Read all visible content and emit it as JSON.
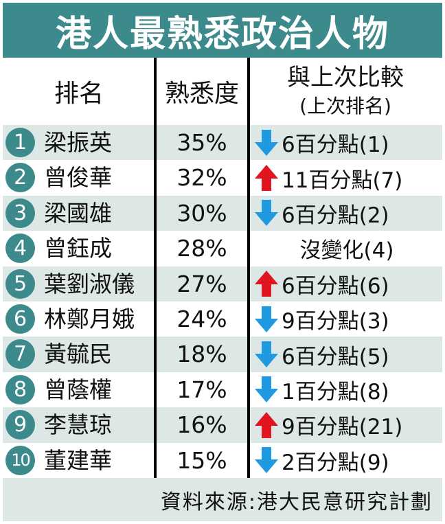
{
  "title": "港人最熟悉政治人物",
  "headers": {
    "rank": "排名",
    "familiarity": "熟悉度",
    "comparison_line1": "與上次比較",
    "comparison_line2": "(上次排名)"
  },
  "colors": {
    "teal": "#3d8a8c",
    "row_shade": "#dce7e6",
    "arrow_up": "#e0151f",
    "arrow_down": "#1f9ae0"
  },
  "rows": [
    {
      "rank": "1",
      "name": "梁振英",
      "pct": "35%",
      "direction": "down",
      "change": "6百分點(1)"
    },
    {
      "rank": "2",
      "name": "曾俊華",
      "pct": "32%",
      "direction": "up",
      "change": "11百分點(7)"
    },
    {
      "rank": "3",
      "name": "梁國雄",
      "pct": "30%",
      "direction": "down",
      "change": "6百分點(2)"
    },
    {
      "rank": "4",
      "name": "曾鈺成",
      "pct": "28%",
      "direction": "none",
      "change": "沒變化(4)"
    },
    {
      "rank": "5",
      "name": "葉劉淑儀",
      "pct": "27%",
      "direction": "up",
      "change": "6百分點(6)"
    },
    {
      "rank": "6",
      "name": "林鄭月娥",
      "pct": "24%",
      "direction": "down",
      "change": "9百分點(3)"
    },
    {
      "rank": "7",
      "name": "黃毓民",
      "pct": "18%",
      "direction": "down",
      "change": "6百分點(5)"
    },
    {
      "rank": "8",
      "name": "曾蔭權",
      "pct": "17%",
      "direction": "down",
      "change": "1百分點(8)"
    },
    {
      "rank": "9",
      "name": "李慧琼",
      "pct": "16%",
      "direction": "up",
      "change": "9百分點(21)"
    },
    {
      "rank": "10",
      "name": "董建華",
      "pct": "15%",
      "direction": "down",
      "change": "2百分點(9)"
    }
  ],
  "footer": "資料來源:港大民意研究計劃"
}
